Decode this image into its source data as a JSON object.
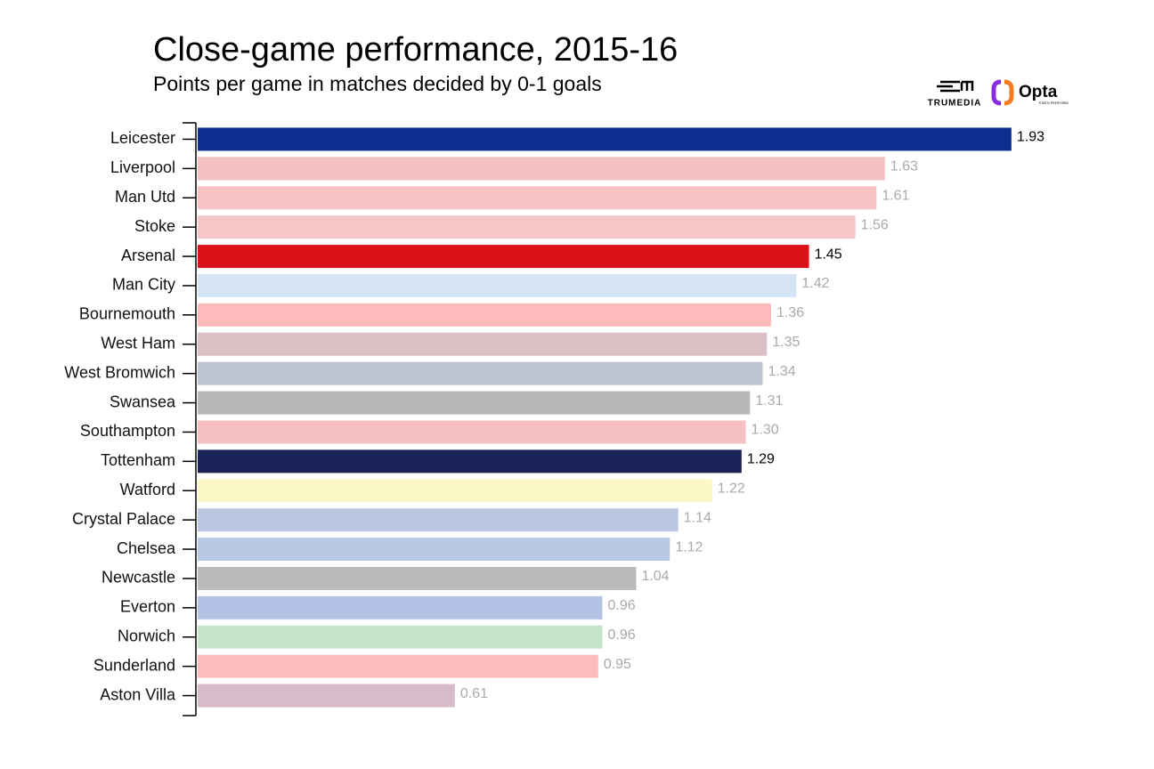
{
  "chart_data": {
    "type": "bar",
    "orientation": "horizontal",
    "title": "Close-game performance, 2015-16",
    "subtitle": "Points per game in matches decided by 0-1 goals",
    "logos": [
      "TRUMEDIA",
      "Opta",
      "STATS PERFORM"
    ],
    "categories": [
      "Leicester",
      "Liverpool",
      "Man Utd",
      "Stoke",
      "Arsenal",
      "Man City",
      "Bournemouth",
      "West Ham",
      "West Bromwich",
      "Swansea",
      "Southampton",
      "Tottenham",
      "Watford",
      "Crystal Palace",
      "Chelsea",
      "Newcastle",
      "Everton",
      "Norwich",
      "Sunderland",
      "Aston Villa"
    ],
    "values": [
      1.93,
      1.63,
      1.61,
      1.56,
      1.45,
      1.42,
      1.36,
      1.35,
      1.34,
      1.31,
      1.3,
      1.29,
      1.22,
      1.14,
      1.12,
      1.04,
      0.96,
      0.96,
      0.95,
      0.61
    ],
    "value_labels": [
      "1.93",
      "1.63",
      "1.61",
      "1.56",
      "1.45",
      "1.42",
      "1.36",
      "1.35",
      "1.34",
      "1.31",
      "1.30",
      "1.29",
      "1.22",
      "1.14",
      "1.12",
      "1.04",
      "0.96",
      "0.96",
      "0.95",
      "0.61"
    ],
    "colors": [
      "#0e2f8f",
      "#f4c0c4",
      "#f9c2c2",
      "#f5c6c8",
      "#dc1219",
      "#d5e4f5",
      "#fdbcbb",
      "#dbbfc5",
      "#bcc3d3",
      "#b8b8b8",
      "#f6c0c0",
      "#1a2258",
      "#fcf8c5",
      "#bcc8e2",
      "#b8c9e3",
      "#bababa",
      "#b4c3e5",
      "#c4e5cc",
      "#fdbdbc",
      "#d7bbc8"
    ],
    "label_colors": [
      "#000",
      "#aaa",
      "#aaa",
      "#aaa",
      "#000",
      "#aaa",
      "#aaa",
      "#aaa",
      "#aaa",
      "#aaa",
      "#aaa",
      "#000",
      "#aaa",
      "#aaa",
      "#aaa",
      "#aaa",
      "#aaa",
      "#aaa",
      "#aaa",
      "#aaa"
    ],
    "xlim": [
      0,
      2
    ]
  }
}
